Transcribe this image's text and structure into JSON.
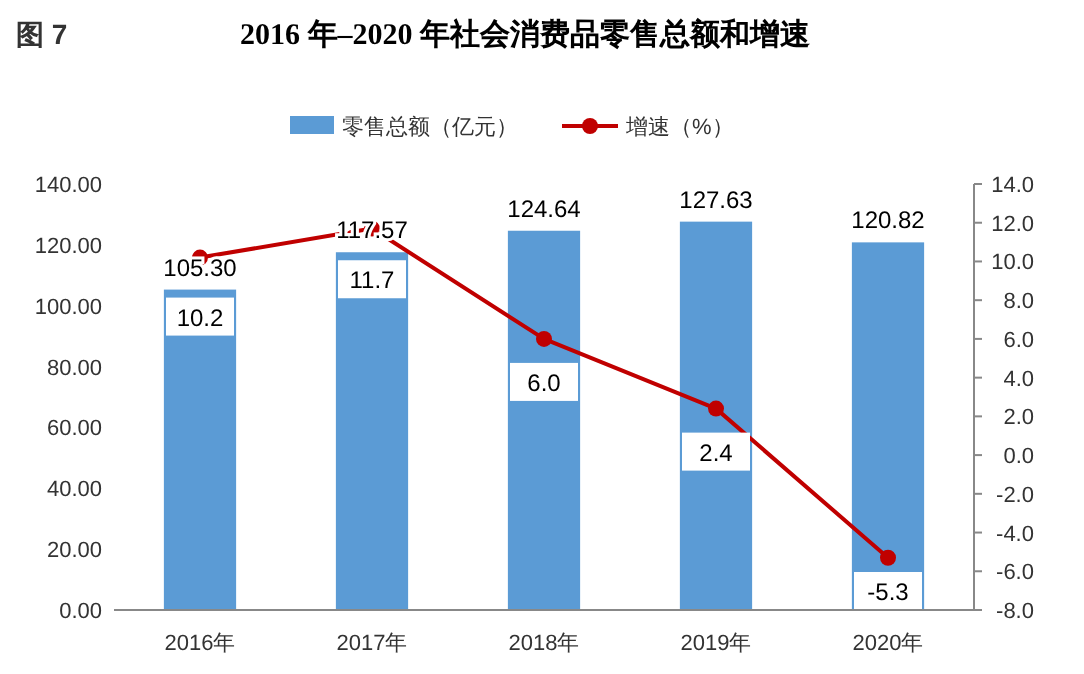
{
  "chart_data": {
    "type": "bar",
    "title": "2016 年–2020 年社会消费品零售总额和增速",
    "annotations": [
      "图 7"
    ],
    "categories": [
      "2016年",
      "2017年",
      "2018年",
      "2019年",
      "2020年"
    ],
    "series": [
      {
        "name": "零售总额（亿元）",
        "color": "#5b9bd5",
        "values": [
          105.3,
          117.57,
          124.64,
          127.63,
          120.82
        ],
        "value_labels": [
          "105.30",
          "117.57",
          "124.64",
          "127.63",
          "120.82"
        ]
      },
      {
        "name": "增速（%）",
        "type": "line",
        "axis": "y2",
        "color": "#c00000",
        "marker": "circle",
        "values": [
          10.2,
          11.7,
          6.0,
          2.4,
          -5.3
        ],
        "value_labels": [
          "10.2",
          "11.7",
          "6.0",
          "2.4",
          "-5.3"
        ]
      }
    ],
    "ylim": [
      0,
      140
    ],
    "yticks": [
      {
        "value": 0,
        "label": "0.00"
      },
      {
        "value": 20,
        "label": "20.00"
      },
      {
        "value": 40,
        "label": "40.00"
      },
      {
        "value": 60,
        "label": "60.00"
      },
      {
        "value": 80,
        "label": "80.00"
      },
      {
        "value": 100,
        "label": "100.00"
      },
      {
        "value": 120,
        "label": "120.00"
      },
      {
        "value": 140,
        "label": "140.00"
      }
    ],
    "y2lim": [
      -8,
      14
    ],
    "y2ticks": [
      {
        "value": -8,
        "label": "-8.0"
      },
      {
        "value": -6,
        "label": "-6.0"
      },
      {
        "value": -4,
        "label": "-4.0"
      },
      {
        "value": -2,
        "label": "-2.0"
      },
      {
        "value": 0,
        "label": "0.0"
      },
      {
        "value": 2,
        "label": "2.0"
      },
      {
        "value": 4,
        "label": "4.0"
      },
      {
        "value": 6,
        "label": "6.0"
      },
      {
        "value": 8,
        "label": "8.0"
      },
      {
        "value": 10,
        "label": "10.0"
      },
      {
        "value": 12,
        "label": "12.0"
      },
      {
        "value": 14,
        "label": "14.0"
      }
    ],
    "legend": "top",
    "grid": false
  }
}
